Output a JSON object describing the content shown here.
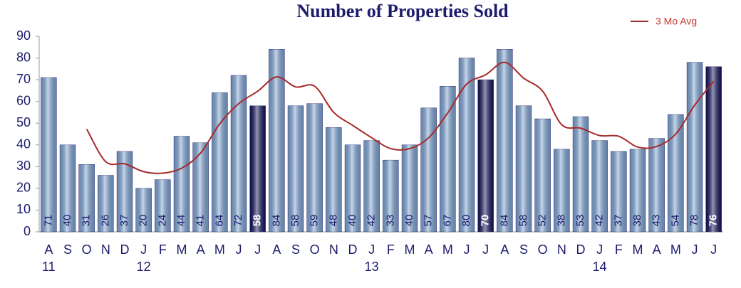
{
  "chart_data": {
    "type": "bar",
    "title": "Number of Properties Sold",
    "categories": [
      "A",
      "S",
      "O",
      "N",
      "D",
      "J",
      "F",
      "M",
      "A",
      "M",
      "J",
      "J",
      "A",
      "S",
      "O",
      "N",
      "D",
      "J",
      "F",
      "M",
      "A",
      "M",
      "J",
      "J",
      "A",
      "S",
      "O",
      "N",
      "D",
      "J",
      "F",
      "M",
      "A",
      "M",
      "J",
      "J"
    ],
    "year_labels": [
      "11",
      null,
      null,
      null,
      null,
      "12",
      null,
      null,
      null,
      null,
      null,
      null,
      null,
      null,
      null,
      null,
      null,
      "13",
      null,
      null,
      null,
      null,
      null,
      null,
      null,
      null,
      null,
      null,
      null,
      "14",
      null,
      null,
      null,
      null,
      null,
      null
    ],
    "values": [
      71,
      40,
      31,
      26,
      37,
      20,
      24,
      44,
      41,
      64,
      72,
      58,
      84,
      58,
      59,
      48,
      40,
      42,
      33,
      40,
      57,
      67,
      80,
      70,
      84,
      58,
      52,
      38,
      53,
      42,
      37,
      38,
      43,
      54,
      78,
      76
    ],
    "colors": [
      "#7fa7d8",
      "#7fa7d8",
      "#7fa7d8",
      "#7fa7d8",
      "#7fa7d8",
      "#7fa7d8",
      "#7fa7d8",
      "#7fa7d8",
      "#7fa7d8",
      "#7fa7d8",
      "#7fa7d8",
      "#14145e",
      "#7fa7d8",
      "#7fa7d8",
      "#7fa7d8",
      "#7fa7d8",
      "#7fa7d8",
      "#7fa7d8",
      "#7fa7d8",
      "#7fa7d8",
      "#7fa7d8",
      "#7fa7d8",
      "#7fa7d8",
      "#14145e",
      "#7fa7d8",
      "#7fa7d8",
      "#7fa7d8",
      "#7fa7d8",
      "#7fa7d8",
      "#7fa7d8",
      "#7fa7d8",
      "#7fa7d8",
      "#7fa7d8",
      "#7fa7d8",
      "#7fa7d8",
      "#14145e"
    ],
    "line": {
      "name": "3 Mo Avg",
      "color": "#a52a2a",
      "values": [
        null,
        null,
        47.3,
        32.3,
        31.3,
        27.7,
        27,
        29.3,
        36.3,
        49.7,
        59,
        64.7,
        71.3,
        66.7,
        67,
        55,
        49,
        43.3,
        38.3,
        38.3,
        43.3,
        54.7,
        68,
        72.3,
        78,
        70.7,
        64.7,
        49.3,
        47.7,
        44.3,
        44,
        39,
        39.3,
        45,
        58.3,
        69.3
      ]
    },
    "ylim": [
      0,
      90
    ],
    "yticks": [
      0,
      10,
      20,
      30,
      40,
      50,
      60,
      70,
      80,
      90
    ],
    "legend": "top-right"
  }
}
